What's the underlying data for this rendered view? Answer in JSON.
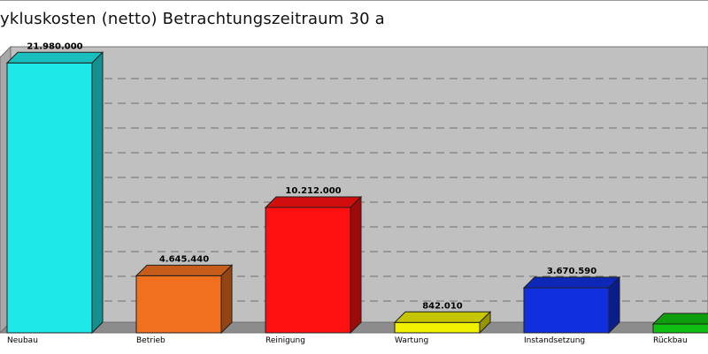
{
  "chart_data": {
    "type": "bar",
    "title": "ykluskosten (netto) Betrachtungszeitraum 30 a",
    "categories": [
      "Neubau",
      "Betrieb",
      "Reinigung",
      "Wartung",
      "Instandsetzung",
      "Rückbau"
    ],
    "values": [
      21980000,
      4645440,
      10212000,
      842010,
      3670590,
      0
    ],
    "value_labels": [
      "21.980.000",
      "4.645.440",
      "10.212.000",
      "842.010",
      "3.670.590",
      ""
    ],
    "colors": [
      "#1fe8e8",
      "#f07020",
      "#ff1010",
      "#f0f000",
      "#1030e0",
      "#10c010"
    ],
    "ylim": [
      0,
      22000000
    ],
    "grid": true,
    "xlabel": "",
    "ylabel": ""
  }
}
